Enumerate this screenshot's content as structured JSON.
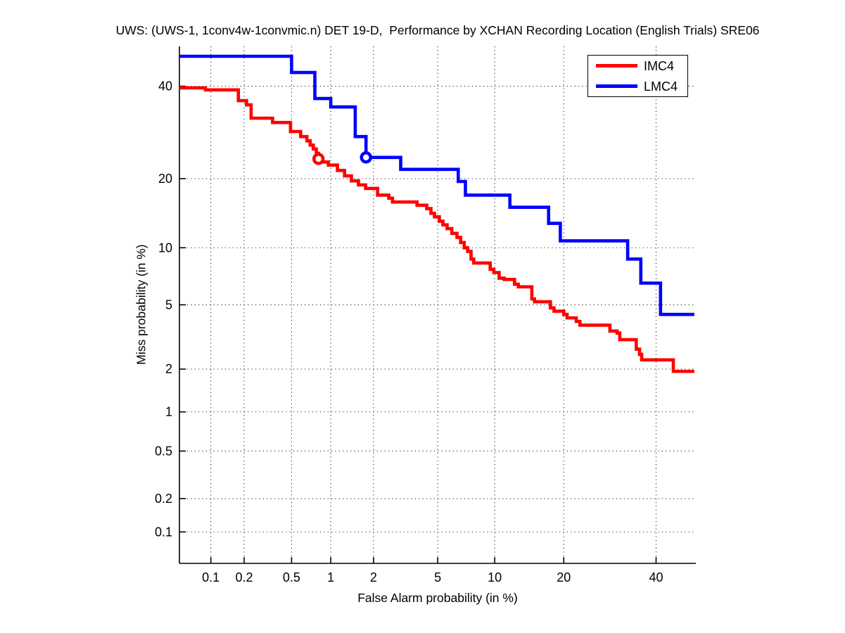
{
  "chart_data": {
    "type": "line",
    "subtype": "DET-curve-staircase",
    "title": "UWS: (UWS-1, 1conv4w-1convmic.n) DET 19-D,  Performance by XCHAN Recording Location (English Trials) SRE06",
    "xlabel": "False Alarm probability (in %)",
    "ylabel": "Miss probability (in %)",
    "x_scale": "probit",
    "y_scale": "probit",
    "xlim": [
      0.05,
      50
    ],
    "ylim": [
      0.05,
      50
    ],
    "x_ticks": [
      0.1,
      0.2,
      0.5,
      1,
      2,
      5,
      10,
      20,
      40
    ],
    "y_ticks": [
      0.1,
      0.2,
      0.5,
      1,
      2,
      5,
      10,
      20,
      40
    ],
    "x_tick_labels": [
      "0.1",
      "0.2",
      "0.5",
      "1",
      "2",
      "5",
      "10",
      "20",
      "40"
    ],
    "y_tick_labels": [
      "0.1",
      "0.2",
      "0.5",
      "1",
      "2",
      "5",
      "10",
      "20",
      "40"
    ],
    "grid": "dotted",
    "legend_position": "top-right-inside",
    "axis_color": "#000000",
    "series": [
      {
        "name": "IMC4",
        "color": "#ff0000",
        "marker": {
          "fa": 0.81,
          "miss": 23.7
        },
        "points": [
          [
            0.05,
            39.6
          ],
          [
            0.089,
            39.6
          ],
          [
            0.089,
            39.1
          ],
          [
            0.178,
            39.1
          ],
          [
            0.178,
            36.5
          ],
          [
            0.21,
            36.5
          ],
          [
            0.21,
            35.5
          ],
          [
            0.23,
            35.5
          ],
          [
            0.23,
            32.4
          ],
          [
            0.35,
            32.4
          ],
          [
            0.35,
            31.4
          ],
          [
            0.49,
            31.4
          ],
          [
            0.49,
            29.4
          ],
          [
            0.59,
            29.4
          ],
          [
            0.59,
            28.3
          ],
          [
            0.66,
            28.3
          ],
          [
            0.66,
            27.4
          ],
          [
            0.7,
            27.4
          ],
          [
            0.7,
            26.5
          ],
          [
            0.74,
            26.5
          ],
          [
            0.74,
            25.7
          ],
          [
            0.78,
            25.7
          ],
          [
            0.78,
            24.8
          ],
          [
            0.81,
            24.8
          ],
          [
            0.81,
            23.7
          ],
          [
            0.86,
            23.7
          ],
          [
            0.86,
            23.1
          ],
          [
            0.96,
            23.1
          ],
          [
            0.96,
            22.5
          ],
          [
            1.12,
            22.5
          ],
          [
            1.12,
            21.5
          ],
          [
            1.26,
            21.5
          ],
          [
            1.26,
            20.5
          ],
          [
            1.41,
            20.5
          ],
          [
            1.41,
            19.6
          ],
          [
            1.58,
            19.6
          ],
          [
            1.58,
            18.9
          ],
          [
            1.77,
            18.9
          ],
          [
            1.77,
            18.3
          ],
          [
            2.13,
            18.3
          ],
          [
            2.13,
            17.2
          ],
          [
            2.52,
            17.2
          ],
          [
            2.52,
            16.7
          ],
          [
            2.66,
            16.7
          ],
          [
            2.66,
            16.1
          ],
          [
            3.78,
            16.1
          ],
          [
            3.78,
            15.6
          ],
          [
            4.32,
            15.6
          ],
          [
            4.32,
            15.1
          ],
          [
            4.57,
            15.1
          ],
          [
            4.57,
            14.4
          ],
          [
            4.79,
            14.4
          ],
          [
            4.79,
            13.9
          ],
          [
            5.11,
            13.9
          ],
          [
            5.11,
            13.3
          ],
          [
            5.35,
            13.3
          ],
          [
            5.35,
            12.8
          ],
          [
            5.65,
            12.8
          ],
          [
            5.65,
            12.3
          ],
          [
            6.0,
            12.3
          ],
          [
            6.0,
            11.7
          ],
          [
            6.4,
            11.7
          ],
          [
            6.4,
            11.2
          ],
          [
            6.7,
            11.2
          ],
          [
            6.7,
            10.6
          ],
          [
            7.0,
            10.6
          ],
          [
            7.0,
            10.0
          ],
          [
            7.3,
            10.0
          ],
          [
            7.3,
            9.6
          ],
          [
            7.6,
            9.6
          ],
          [
            7.6,
            8.8
          ],
          [
            7.85,
            8.8
          ],
          [
            7.85,
            8.4
          ],
          [
            9.5,
            8.4
          ],
          [
            9.5,
            7.8
          ],
          [
            9.9,
            7.8
          ],
          [
            9.9,
            7.5
          ],
          [
            10.5,
            7.5
          ],
          [
            10.5,
            7.0
          ],
          [
            11.1,
            7.0
          ],
          [
            11.1,
            6.9
          ],
          [
            12.4,
            6.9
          ],
          [
            12.4,
            6.5
          ],
          [
            12.9,
            6.5
          ],
          [
            12.9,
            6.3
          ],
          [
            14.8,
            6.3
          ],
          [
            14.8,
            5.4
          ],
          [
            15.2,
            5.4
          ],
          [
            15.2,
            5.2
          ],
          [
            17.7,
            5.2
          ],
          [
            17.7,
            4.8
          ],
          [
            18.3,
            4.8
          ],
          [
            18.3,
            4.6
          ],
          [
            20.0,
            4.6
          ],
          [
            20.0,
            4.4
          ],
          [
            20.6,
            4.4
          ],
          [
            20.6,
            4.2
          ],
          [
            22.3,
            4.2
          ],
          [
            22.3,
            4.0
          ],
          [
            23.0,
            4.0
          ],
          [
            23.0,
            3.8
          ],
          [
            29.2,
            3.8
          ],
          [
            29.2,
            3.5
          ],
          [
            30.8,
            3.5
          ],
          [
            30.8,
            3.4
          ],
          [
            31.4,
            3.4
          ],
          [
            31.4,
            3.1
          ],
          [
            35.2,
            3.1
          ],
          [
            35.2,
            2.7
          ],
          [
            36.0,
            2.7
          ],
          [
            36.0,
            2.5
          ],
          [
            36.5,
            2.5
          ],
          [
            36.5,
            2.3
          ],
          [
            44.3,
            2.3
          ],
          [
            44.3,
            1.93
          ],
          [
            49.6,
            1.93
          ]
        ]
      },
      {
        "name": "LMC4",
        "color": "#0000ff",
        "marker": {
          "fa": 1.78,
          "miss": 24.0
        },
        "points": [
          [
            0.05,
            47.5
          ],
          [
            0.5,
            47.5
          ],
          [
            0.5,
            43.4
          ],
          [
            0.76,
            43.4
          ],
          [
            0.76,
            37.0
          ],
          [
            1.0,
            37.0
          ],
          [
            1.0,
            35.0
          ],
          [
            1.5,
            35.0
          ],
          [
            1.5,
            28.3
          ],
          [
            1.78,
            28.3
          ],
          [
            1.78,
            24.0
          ],
          [
            3.0,
            24.0
          ],
          [
            3.0,
            21.7
          ],
          [
            6.5,
            21.7
          ],
          [
            6.5,
            19.5
          ],
          [
            7.1,
            19.5
          ],
          [
            7.1,
            17.2
          ],
          [
            11.8,
            17.2
          ],
          [
            11.8,
            15.3
          ],
          [
            17.4,
            15.3
          ],
          [
            17.4,
            13.0
          ],
          [
            19.4,
            13.0
          ],
          [
            19.4,
            10.8
          ],
          [
            33.2,
            10.8
          ],
          [
            33.2,
            8.8
          ],
          [
            36.3,
            8.8
          ],
          [
            36.3,
            6.6
          ],
          [
            41.1,
            6.6
          ],
          [
            41.1,
            4.4
          ],
          [
            49.6,
            4.4
          ]
        ]
      }
    ]
  }
}
